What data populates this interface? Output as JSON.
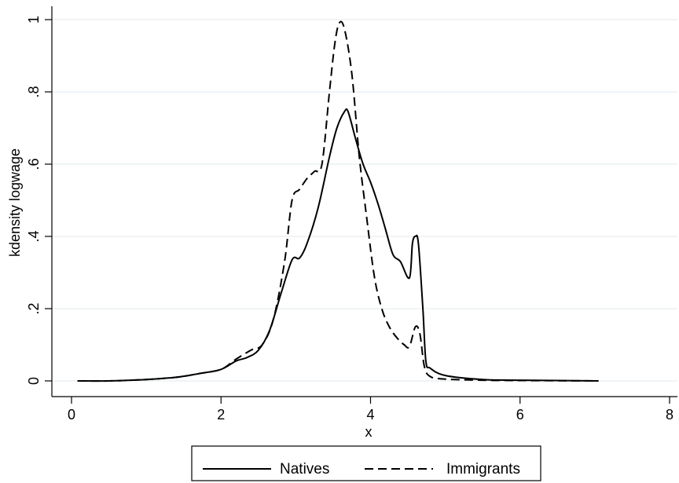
{
  "chart_data": {
    "type": "line",
    "title": "",
    "xlabel": "x",
    "ylabel": "kdensity logwage",
    "xlim": [
      0,
      8
    ],
    "ylim": [
      0,
      1
    ],
    "x_ticks": [
      0,
      2,
      4,
      6,
      8
    ],
    "x_tick_labels": [
      "0",
      "2",
      "4",
      "6",
      "8"
    ],
    "y_ticks": [
      0,
      0.2,
      0.4,
      0.6,
      0.8,
      1
    ],
    "y_tick_labels": [
      "0",
      ".2",
      ".4",
      ".6",
      ".8",
      "1"
    ],
    "grid": "horizontal",
    "legend_position": "bottom",
    "series": [
      {
        "name": "Natives",
        "style": "solid",
        "color": "#000000",
        "points": [
          [
            0.08,
            0.0
          ],
          [
            0.5,
            0.0
          ],
          [
            1.0,
            0.004
          ],
          [
            1.4,
            0.01
          ],
          [
            1.7,
            0.02
          ],
          [
            2.0,
            0.032
          ],
          [
            2.2,
            0.055
          ],
          [
            2.35,
            0.065
          ],
          [
            2.5,
            0.085
          ],
          [
            2.65,
            0.14
          ],
          [
            2.8,
            0.24
          ],
          [
            2.95,
            0.335
          ],
          [
            3.05,
            0.34
          ],
          [
            3.15,
            0.38
          ],
          [
            3.3,
            0.48
          ],
          [
            3.45,
            0.62
          ],
          [
            3.55,
            0.7
          ],
          [
            3.65,
            0.745
          ],
          [
            3.7,
            0.745
          ],
          [
            3.8,
            0.67
          ],
          [
            3.9,
            0.6
          ],
          [
            4.0,
            0.55
          ],
          [
            4.1,
            0.49
          ],
          [
            4.2,
            0.42
          ],
          [
            4.3,
            0.35
          ],
          [
            4.4,
            0.33
          ],
          [
            4.52,
            0.285
          ],
          [
            4.56,
            0.38
          ],
          [
            4.6,
            0.4
          ],
          [
            4.64,
            0.38
          ],
          [
            4.7,
            0.2
          ],
          [
            4.74,
            0.055
          ],
          [
            4.8,
            0.035
          ],
          [
            5.0,
            0.015
          ],
          [
            5.5,
            0.004
          ],
          [
            6.0,
            0.002
          ],
          [
            7.05,
            0.0
          ]
        ]
      },
      {
        "name": "Immigrants",
        "style": "dashed",
        "color": "#000000",
        "points": [
          [
            0.08,
            0.0
          ],
          [
            0.5,
            0.0
          ],
          [
            1.0,
            0.004
          ],
          [
            1.4,
            0.01
          ],
          [
            1.7,
            0.02
          ],
          [
            2.0,
            0.032
          ],
          [
            2.2,
            0.06
          ],
          [
            2.4,
            0.085
          ],
          [
            2.55,
            0.1
          ],
          [
            2.7,
            0.17
          ],
          [
            2.85,
            0.33
          ],
          [
            2.95,
            0.5
          ],
          [
            3.05,
            0.53
          ],
          [
            3.15,
            0.56
          ],
          [
            3.25,
            0.58
          ],
          [
            3.35,
            0.6
          ],
          [
            3.45,
            0.8
          ],
          [
            3.52,
            0.93
          ],
          [
            3.58,
            0.99
          ],
          [
            3.65,
            0.975
          ],
          [
            3.75,
            0.85
          ],
          [
            3.85,
            0.62
          ],
          [
            3.95,
            0.45
          ],
          [
            4.05,
            0.29
          ],
          [
            4.15,
            0.2
          ],
          [
            4.25,
            0.15
          ],
          [
            4.35,
            0.12
          ],
          [
            4.45,
            0.1
          ],
          [
            4.52,
            0.095
          ],
          [
            4.6,
            0.15
          ],
          [
            4.66,
            0.13
          ],
          [
            4.72,
            0.04
          ],
          [
            4.8,
            0.012
          ],
          [
            5.0,
            0.005
          ],
          [
            5.5,
            0.002
          ],
          [
            6.0,
            0.001
          ],
          [
            7.05,
            0.0
          ]
        ]
      }
    ]
  }
}
